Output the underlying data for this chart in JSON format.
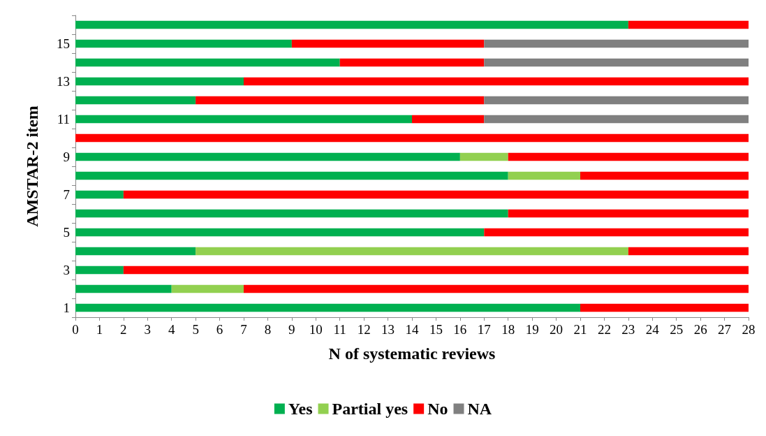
{
  "chart_data": {
    "type": "bar",
    "orientation": "horizontal",
    "stacked": true,
    "categories": [
      null,
      "15",
      null,
      "13",
      null,
      "11",
      null,
      "9",
      null,
      "7",
      null,
      "5",
      null,
      "3",
      null,
      "1"
    ],
    "series": [
      {
        "name": "Yes",
        "color": "#00b050",
        "values": [
          23,
          9,
          11,
          7,
          5,
          14,
          0,
          16,
          18,
          2,
          18,
          17,
          5,
          2,
          4,
          21
        ]
      },
      {
        "name": "Partial yes",
        "color": "#92d050",
        "values": [
          0,
          0,
          0,
          0,
          0,
          0,
          0,
          2,
          3,
          0,
          0,
          0,
          18,
          0,
          3,
          0
        ]
      },
      {
        "name": "No",
        "color": "#ff0000",
        "values": [
          5,
          8,
          6,
          21,
          12,
          3,
          28,
          10,
          7,
          26,
          10,
          11,
          5,
          26,
          21,
          7
        ]
      },
      {
        "name": "NA",
        "color": "#808080",
        "values": [
          0,
          11,
          11,
          0,
          11,
          11,
          0,
          0,
          0,
          0,
          0,
          0,
          0,
          0,
          0,
          0
        ]
      }
    ],
    "xlabel": "N of systematic reviews",
    "ylabel": "AMSTAR-2 item",
    "xlim": [
      0,
      28
    ],
    "xticks": [
      0,
      1,
      2,
      3,
      4,
      5,
      6,
      7,
      8,
      9,
      10,
      11,
      12,
      13,
      14,
      15,
      16,
      17,
      18,
      19,
      20,
      21,
      22,
      23,
      24,
      25,
      26,
      27,
      28
    ],
    "grid": false,
    "legend": "bottom"
  }
}
